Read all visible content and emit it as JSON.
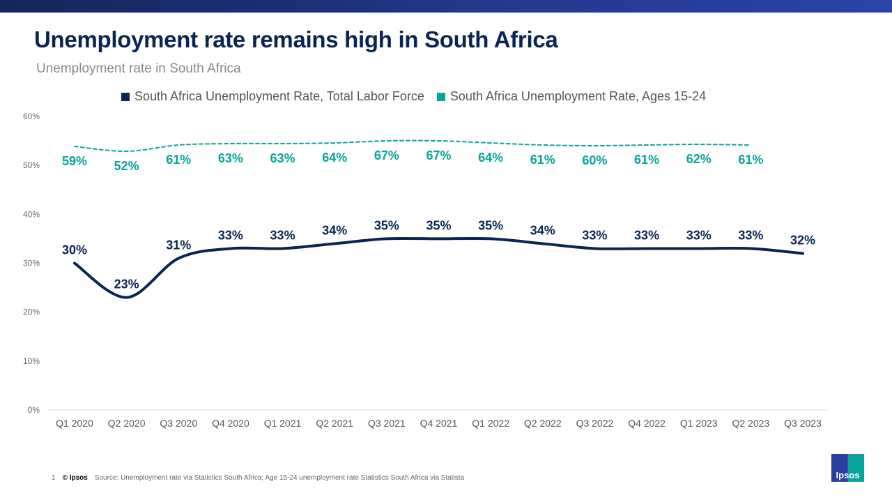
{
  "header": {
    "title": "Unemployment rate remains high in South Africa",
    "subtitle": "Unemployment  rate in South Africa"
  },
  "chart_data": {
    "type": "line",
    "title": "",
    "xlabel": "",
    "ylabel": "",
    "ylim": [
      0,
      60
    ],
    "y_ticks": [
      "0%",
      "10%",
      "20%",
      "30%",
      "40%",
      "50%",
      "60%"
    ],
    "grid": false,
    "legend_placement": "top",
    "categories": [
      "Q1 2020",
      "Q2 2020",
      "Q3 2020",
      "Q4 2020",
      "Q1 2021",
      "Q2 2021",
      "Q3 2021",
      "Q4 2021",
      "Q1 2022",
      "Q2 2022",
      "Q3 2022",
      "Q4 2022",
      "Q1 2023",
      "Q2 2023",
      "Q3 2023"
    ],
    "series": [
      {
        "name": "South Africa Unemployment Rate, Total Labor Force",
        "color": "#0b2552",
        "style": "solid",
        "axis": "primary",
        "values": [
          30,
          23,
          31,
          33,
          33,
          34,
          35,
          35,
          35,
          34,
          33,
          33,
          33,
          33,
          32
        ],
        "labels": [
          "30%",
          "23%",
          "31%",
          "33%",
          "33%",
          "34%",
          "35%",
          "35%",
          "35%",
          "34%",
          "33%",
          "33%",
          "33%",
          "33%",
          "32%"
        ]
      },
      {
        "name": "South Africa Unemployment Rate, Ages 15-24",
        "color": "#0aa39a",
        "style": "dashed",
        "axis": "secondary (hidden)",
        "values": [
          59,
          52,
          61,
          63,
          63,
          64,
          67,
          67,
          64,
          61,
          60,
          61,
          62,
          61,
          null
        ],
        "labels": [
          "59%",
          "52%",
          "61%",
          "63%",
          "63%",
          "64%",
          "67%",
          "67%",
          "64%",
          "61%",
          "60%",
          "61%",
          "62%",
          "61%",
          null
        ]
      }
    ]
  },
  "footer": {
    "page_number": "1",
    "copyright": "© Ipsos",
    "source": "Source: Unemployment  rate via Statistics South Africa; Age 15-24 unemployment rate Statistics South Africa via Statista"
  },
  "logo": {
    "text": "Ipsos"
  }
}
